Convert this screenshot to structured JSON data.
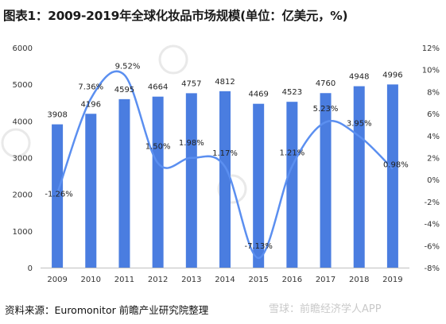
{
  "title": "图表1：2009-2019年全球化妆品市场规模(单位：亿美元，%)",
  "source": "资料来源：Euromonitor 前瞻产业研究院整理",
  "watermark": "雪球：前瞻经济学人APP",
  "chart_data": {
    "type": "bar+line",
    "categories": [
      "2009",
      "2010",
      "2011",
      "2012",
      "2013",
      "2014",
      "2015",
      "2016",
      "2017",
      "2018",
      "2019"
    ],
    "bar_values": [
      3908,
      4196,
      4595,
      4664,
      4757,
      4812,
      4469,
      4523,
      4760,
      4948,
      4996
    ],
    "bar_labels": [
      "3908",
      "4196",
      "4595",
      "4664",
      "4757",
      "4812",
      "4469",
      "4523",
      "4760",
      "4948",
      "4996"
    ],
    "line_values": [
      -1.26,
      7.36,
      9.52,
      1.5,
      1.98,
      1.17,
      -7.13,
      1.21,
      5.23,
      3.95,
      0.98
    ],
    "line_labels": [
      "-1.26%",
      "7.36%",
      "9.52%",
      "1.50%",
      "1.98%",
      "1.17%",
      "-7.13%",
      "1.21%",
      "5.23%",
      "3.95%",
      "0.98%"
    ],
    "y_left_ticks": [
      "0",
      "1000",
      "2000",
      "3000",
      "4000",
      "5000",
      "6000"
    ],
    "y_right_ticks": [
      "-8%",
      "-6%",
      "-4%",
      "-2%",
      "0%",
      "2%",
      "4%",
      "6%",
      "8%",
      "10%",
      "12%"
    ],
    "y_left_lim": [
      0,
      6000
    ],
    "y_right_lim": [
      -8,
      12
    ],
    "bar_color": "#4a7de0",
    "line_color": "#5b8ff0",
    "grid": false
  }
}
